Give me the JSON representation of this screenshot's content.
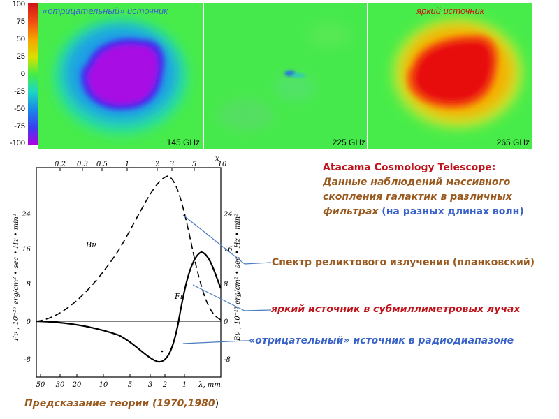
{
  "colorbar": {
    "ticks": [
      "100",
      "75",
      "50",
      "25",
      "0",
      "-25",
      "-50",
      "-75",
      "-100"
    ]
  },
  "panels": [
    {
      "label": "«отрицательный» источник",
      "label_color": "#3a63c9",
      "freq": "145 GHz"
    },
    {
      "label": "",
      "label_color": "#000000",
      "freq": "225 GHz"
    },
    {
      "label": "яркий источник",
      "label_color": "#d01010",
      "freq": "265 GHz"
    }
  ],
  "graph": {
    "top_axis_label": "x",
    "top_ticks": [
      "0.2",
      "0.3",
      "0.5",
      "1",
      "2",
      "3",
      "5",
      "10"
    ],
    "bottom_ticks": [
      "50",
      "30",
      "20",
      "10",
      "5",
      "3",
      "2",
      "1"
    ],
    "bottom_axis_label": "λ, mm",
    "left_ticks": [
      "24",
      "16",
      "8",
      "0",
      "-8"
    ],
    "right_ticks": [
      "24",
      "16",
      "8",
      "0",
      "-8"
    ],
    "left_axis_label": "Fν , 10⁻²⁵ erg/cm² • sec • Hz • min²",
    "right_axis_label": "Bν , 10⁻²³ erg/cm² • sec • Hz • min²",
    "curve_label_b": "Bν",
    "curve_label_f": "Fν"
  },
  "title_block": {
    "line1": "Atacama Cosmology Telescope:",
    "line2": "Данные наблюдений массивного",
    "line3": "скопления галактик  в различных",
    "line4_main": "фильтрах",
    "line4_paren": "(на разных длинах волн)",
    "colors": {
      "line1": "#c0141c",
      "body": "#9a5a1f",
      "paren": "#3a63c9"
    }
  },
  "annotations": {
    "planck": "Спектр реликтового излучения (планковский)",
    "bright": "яркий источник в субмиллиметровых лучах",
    "negative": "«отрицательный» источник в радиодиапазоне",
    "colors": {
      "planck": "#9a5a1f",
      "bright": "#c0141c",
      "negative": "#3a63c9"
    }
  },
  "footer": {
    "text": "Предсказание теории (1970,1980",
    "paren": ")"
  }
}
